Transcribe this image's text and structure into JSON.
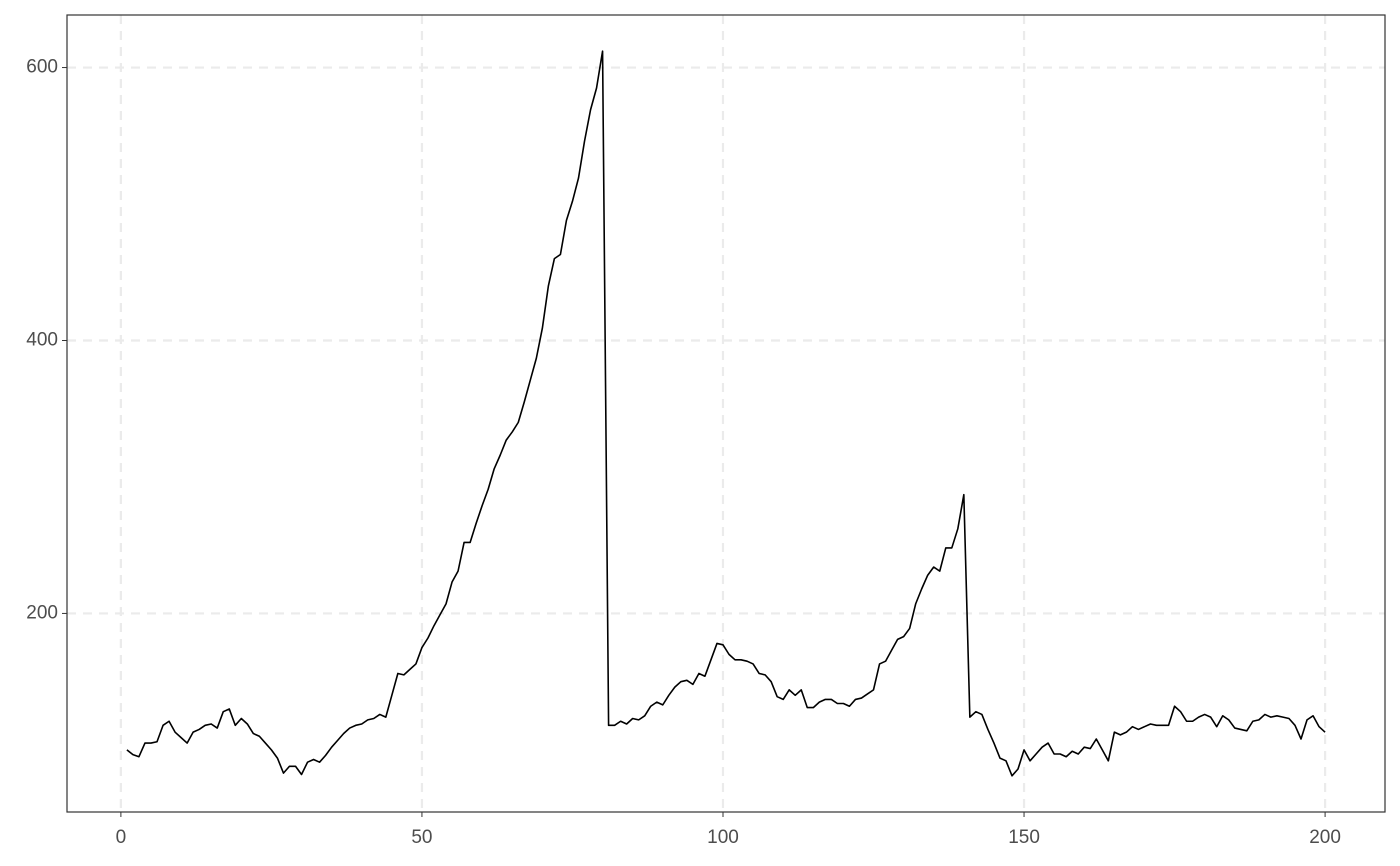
{
  "chart_data": {
    "type": "line",
    "x": [
      1,
      2,
      3,
      4,
      5,
      6,
      7,
      8,
      9,
      10,
      11,
      12,
      13,
      14,
      15,
      16,
      17,
      18,
      19,
      20,
      21,
      22,
      23,
      24,
      25,
      26,
      27,
      28,
      29,
      30,
      31,
      32,
      33,
      34,
      35,
      36,
      37,
      38,
      39,
      40,
      41,
      42,
      43,
      44,
      45,
      46,
      47,
      48,
      49,
      50,
      51,
      52,
      53,
      54,
      55,
      56,
      57,
      58,
      59,
      60,
      61,
      62,
      63,
      64,
      65,
      66,
      67,
      68,
      69,
      70,
      71,
      72,
      73,
      74,
      75,
      76,
      77,
      78,
      79,
      80,
      81,
      82,
      83,
      84,
      85,
      86,
      87,
      88,
      89,
      90,
      91,
      92,
      93,
      94,
      95,
      96,
      97,
      98,
      99,
      100,
      101,
      102,
      103,
      104,
      105,
      106,
      107,
      108,
      109,
      110,
      111,
      112,
      113,
      114,
      115,
      116,
      117,
      118,
      119,
      120,
      121,
      122,
      123,
      124,
      125,
      126,
      127,
      128,
      129,
      130,
      131,
      132,
      133,
      134,
      135,
      136,
      137,
      138,
      139,
      140,
      141,
      142,
      143,
      144,
      145,
      146,
      147,
      148,
      149,
      150,
      151,
      152,
      153,
      154,
      155,
      156,
      157,
      158,
      159,
      160,
      161,
      162,
      163,
      164,
      165,
      166,
      167,
      168,
      169,
      170,
      171,
      172,
      173,
      174,
      175,
      176,
      177,
      178,
      179,
      180,
      181,
      182,
      183,
      184,
      185,
      186,
      187,
      188,
      189,
      190,
      191,
      192,
      193,
      194,
      195,
      196,
      197,
      198,
      199,
      200
    ],
    "values": [
      100,
      96.5,
      95,
      105,
      105,
      106,
      118,
      121,
      113,
      109,
      105,
      113,
      115,
      118,
      119,
      116,
      128,
      130,
      118,
      123,
      119,
      112,
      110,
      105,
      100,
      94,
      83,
      88,
      88,
      82,
      91,
      93,
      91,
      96,
      102,
      107,
      112,
      116,
      118,
      119,
      122,
      123,
      126,
      124,
      140,
      156,
      155,
      159,
      163,
      175,
      182,
      191,
      199,
      207,
      223,
      231,
      252,
      252,
      266,
      279,
      291,
      306,
      316,
      327,
      333,
      340,
      355,
      371,
      387,
      409,
      440,
      460,
      463,
      488,
      502,
      519,
      546,
      569,
      585,
      612,
      118,
      118,
      121,
      119,
      123,
      122,
      125,
      132,
      135,
      133,
      140,
      146,
      150,
      151,
      148,
      156,
      154,
      166,
      178,
      177,
      170,
      166,
      166,
      165,
      163,
      156,
      155,
      150,
      139,
      137,
      144,
      140,
      144,
      131,
      131,
      135,
      137,
      137,
      134,
      134,
      132,
      137,
      138,
      141,
      144,
      163,
      165,
      173,
      181,
      183,
      189,
      207,
      218,
      228,
      234,
      231,
      248,
      248,
      262,
      287,
      124,
      128,
      126,
      115,
      105,
      94,
      92,
      81,
      86,
      100,
      92,
      97,
      102,
      105,
      97,
      97,
      95,
      99,
      97,
      102,
      101,
      108,
      100,
      92,
      113,
      111,
      113,
      117,
      115,
      117,
      119,
      118,
      118,
      118,
      132,
      128,
      121,
      121,
      124,
      126,
      124,
      117,
      125,
      122,
      116,
      115,
      114,
      121,
      122,
      126,
      124,
      125,
      124,
      123,
      118,
      108,
      122,
      125,
      117,
      113
    ],
    "color": "#000000",
    "xlim": [
      -8.95,
      209.95
    ],
    "xticks": [
      0,
      50,
      100,
      150,
      200
    ],
    "ylim": [
      54.5,
      638.5
    ],
    "yticks": [
      200,
      400,
      600
    ],
    "grid": true
  }
}
